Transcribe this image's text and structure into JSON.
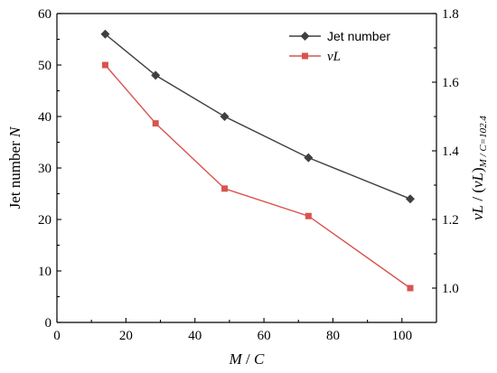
{
  "chart_data": {
    "type": "line",
    "xlabel": {
      "var": "M",
      "sep": " / ",
      "var2": "C"
    },
    "y_left_label": {
      "prefix": "Jet number ",
      "var": "N"
    },
    "y_right_label": {
      "a": "vL",
      "b": " / (",
      "c": "vL",
      "d": ")",
      "sub": "M / C=102.4"
    },
    "xlim": [
      0,
      110
    ],
    "ylim_left": [
      0,
      60
    ],
    "ylim_right": [
      0.9,
      1.8
    ],
    "x_ticks": [
      0,
      20,
      40,
      60,
      80,
      100
    ],
    "x_tick_labels": [
      "0",
      "20",
      "40",
      "60",
      "80",
      "100"
    ],
    "y_left_ticks": [
      0,
      10,
      20,
      30,
      40,
      50,
      60
    ],
    "y_left_tick_labels": [
      "0",
      "10",
      "20",
      "30",
      "40",
      "50",
      "60"
    ],
    "y_right_ticks": [
      1.0,
      1.2,
      1.4,
      1.6,
      1.8
    ],
    "y_right_tick_labels": [
      "1.0",
      "1.2",
      "1.4",
      "1.6",
      "1.8"
    ],
    "legend_position": "top-right",
    "series": [
      {
        "name": "Jet number",
        "axis": "left",
        "marker": "diamond",
        "color": "#404040",
        "x": [
          14.0,
          28.6,
          48.6,
          72.9,
          102.4
        ],
        "y": [
          56,
          48,
          40,
          32,
          24
        ]
      },
      {
        "name": "vL",
        "axis": "right",
        "marker": "square",
        "color": "#d9534f",
        "x": [
          14.0,
          28.6,
          48.6,
          72.9,
          102.4
        ],
        "y": [
          1.65,
          1.48,
          1.29,
          1.21,
          1.0
        ]
      }
    ]
  }
}
